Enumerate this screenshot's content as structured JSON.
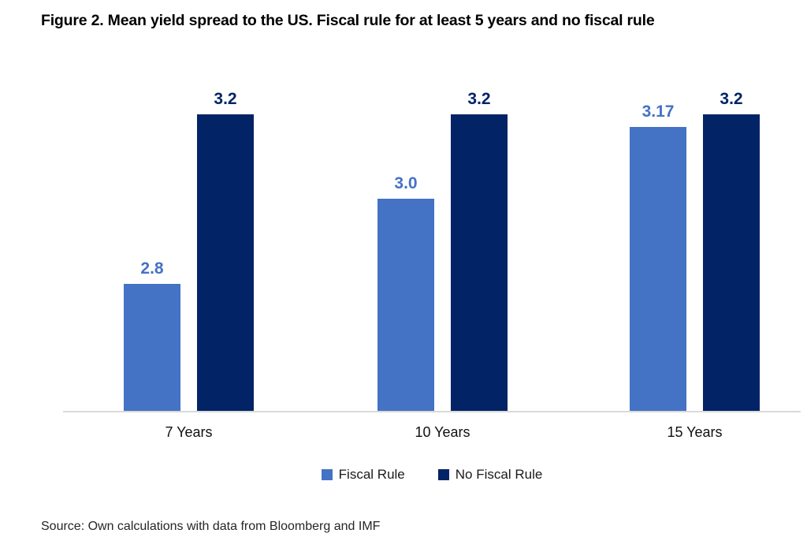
{
  "title": "Figure 2. Mean yield spread to the US. Fiscal rule for at least 5 years and no fiscal rule",
  "source_note": "Source: Own calculations with data from Bloomberg and IMF",
  "legend": {
    "fiscal_rule": "Fiscal Rule",
    "no_fiscal_rule": "No Fiscal Rule"
  },
  "colors": {
    "fiscal_rule": "#4472C4",
    "no_fiscal_rule": "#022366",
    "axis_line": "#D9D9D9",
    "title_text": "#000000",
    "background": "#FFFFFF"
  },
  "chart_data": {
    "type": "bar",
    "title": "Figure 2. Mean yield spread to the US. Fiscal rule for at least 5 years and no fiscal rule",
    "categories": [
      "7 Years",
      "10 Years",
      "15 Years"
    ],
    "series": [
      {
        "name": "Fiscal Rule",
        "color": "#4472C4",
        "values": [
          2.8,
          3.0,
          3.17
        ],
        "data_labels": [
          "2.8",
          "3.0",
          "3.17"
        ]
      },
      {
        "name": "No Fiscal Rule",
        "color": "#022366",
        "values": [
          3.2,
          3.2,
          3.2
        ],
        "data_labels": [
          "3.2",
          "3.2",
          "3.2"
        ]
      }
    ],
    "xlabel": "",
    "ylabel": "",
    "ylim": [
      2.5,
      3.3
    ],
    "grid": false,
    "y_axis_visible": false,
    "legend_position": "bottom",
    "data_labels": true
  }
}
